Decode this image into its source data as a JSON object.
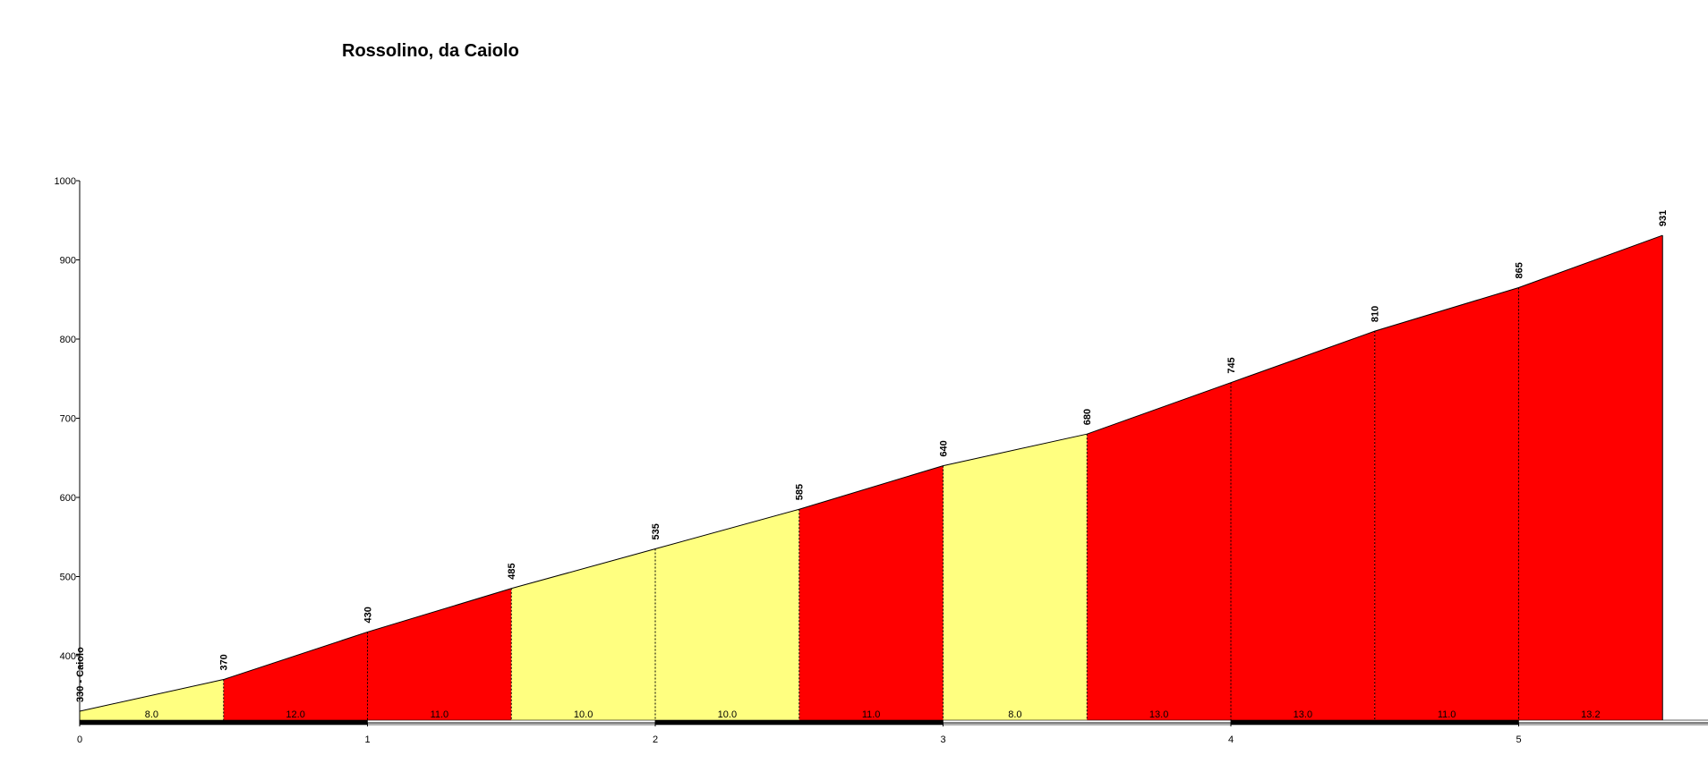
{
  "chart_data": {
    "type": "area",
    "title": "Rossolino, da Caiolo",
    "xlabel": "",
    "ylabel": "",
    "xlim": [
      0,
      5.5
    ],
    "ylim": [
      310,
      1000
    ],
    "y_ticks": [
      400,
      500,
      600,
      700,
      800,
      900,
      1000
    ],
    "x_ticks": [
      0,
      1,
      2,
      3,
      4,
      5
    ],
    "grid": false,
    "points": [
      {
        "x": 0.0,
        "y": 330,
        "label": "330 - Caiolo"
      },
      {
        "x": 0.5,
        "y": 370,
        "label": "370"
      },
      {
        "x": 1.0,
        "y": 430,
        "label": "430"
      },
      {
        "x": 1.5,
        "y": 485,
        "label": "485"
      },
      {
        "x": 2.0,
        "y": 535,
        "label": "535"
      },
      {
        "x": 2.5,
        "y": 585,
        "label": "585"
      },
      {
        "x": 3.0,
        "y": 640,
        "label": "640"
      },
      {
        "x": 3.5,
        "y": 680,
        "label": "680"
      },
      {
        "x": 4.0,
        "y": 745,
        "label": "745"
      },
      {
        "x": 4.5,
        "y": 810,
        "label": "810"
      },
      {
        "x": 5.0,
        "y": 865,
        "label": "865"
      },
      {
        "x": 5.5,
        "y": 931,
        "label": "931"
      }
    ],
    "segments": [
      {
        "from": 0.0,
        "to": 0.5,
        "gradient": "8.0",
        "color": "#ffff80"
      },
      {
        "from": 0.5,
        "to": 1.0,
        "gradient": "12.0",
        "color": "#ff0000"
      },
      {
        "from": 1.0,
        "to": 1.5,
        "gradient": "11.0",
        "color": "#ff0000"
      },
      {
        "from": 1.5,
        "to": 2.0,
        "gradient": "10.0",
        "color": "#ffff80"
      },
      {
        "from": 2.0,
        "to": 2.5,
        "gradient": "10.0",
        "color": "#ffff80"
      },
      {
        "from": 2.5,
        "to": 3.0,
        "gradient": "11.0",
        "color": "#ff0000"
      },
      {
        "from": 3.0,
        "to": 3.5,
        "gradient": "8.0",
        "color": "#ffff80"
      },
      {
        "from": 3.5,
        "to": 4.0,
        "gradient": "13.0",
        "color": "#ff0000"
      },
      {
        "from": 4.0,
        "to": 4.5,
        "gradient": "13.0",
        "color": "#ff0000"
      },
      {
        "from": 4.5,
        "to": 5.0,
        "gradient": "11.0",
        "color": "#ff0000"
      },
      {
        "from": 5.0,
        "to": 5.5,
        "gradient": "13.2",
        "color": "#ff0000"
      }
    ]
  }
}
